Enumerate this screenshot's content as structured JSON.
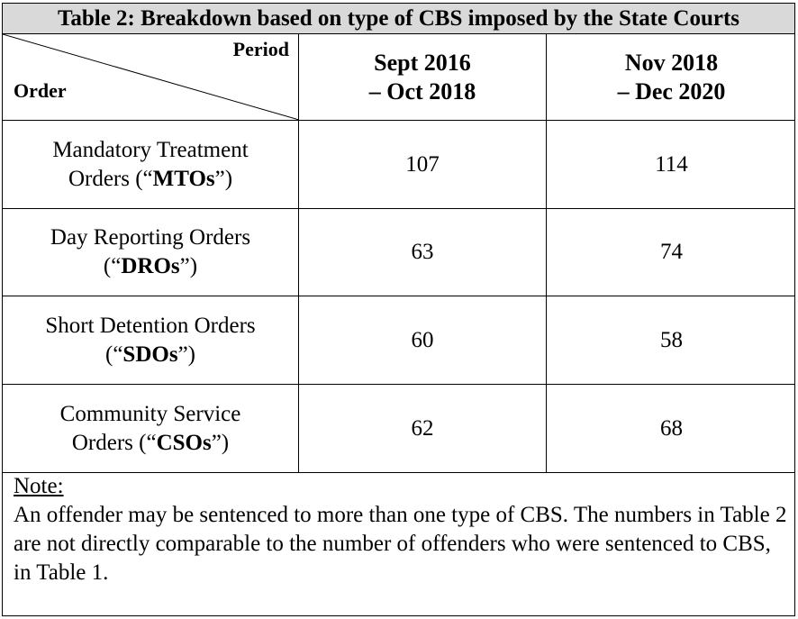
{
  "title": "Table 2: Breakdown based on type of CBS imposed by the State Courts",
  "header": {
    "period_label": "Period",
    "order_label": "Order",
    "col1_line1": "Sept 2016",
    "col1_line2": "– Oct 2018",
    "col2_line1": "Nov 2018",
    "col2_line2": "– Dec 2020"
  },
  "rows": [
    {
      "line1": "Mandatory Treatment",
      "line2_pre": "Orders (“",
      "abbr": "MTOs",
      "line2_post": "”)",
      "v1": "107",
      "v2": "114"
    },
    {
      "line1": "Day Reporting Orders",
      "line2_pre": "(“",
      "abbr": "DROs",
      "line2_post": "”)",
      "v1": "63",
      "v2": "74"
    },
    {
      "line1": "Short Detention Orders",
      "line2_pre": "(“",
      "abbr": "SDOs",
      "line2_post": "”)",
      "v1": "60",
      "v2": "58"
    },
    {
      "line1": "Community Service",
      "line2_pre": "Orders (“",
      "abbr": "CSOs",
      "line2_post": "”)",
      "v1": "62",
      "v2": "68"
    }
  ],
  "note": {
    "label": "Note:",
    "text": "An offender may be sentenced to more than one type of CBS. The numbers in Table 2 are not directly comparable to the number of offenders who were sentenced to CBS, in Table 1."
  }
}
